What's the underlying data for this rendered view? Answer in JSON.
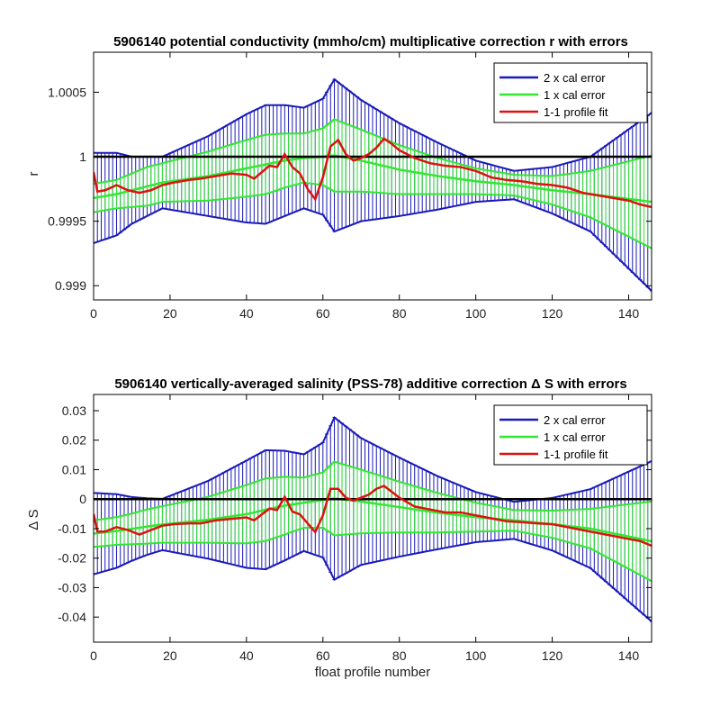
{
  "chart_data": [
    {
      "type": "line",
      "title": "5906140 potential conductivity (mmho/cm) multiplicative correction r with errors",
      "xlabel": "",
      "ylabel": "r",
      "xlim": [
        0,
        146
      ],
      "ylim": [
        0.99889,
        1.00081
      ],
      "xticks": [
        0,
        20,
        40,
        60,
        80,
        100,
        120,
        140
      ],
      "yticks": [
        0.999,
        0.9995,
        1,
        1.0005
      ],
      "ytick_labels": [
        "0.999",
        "0.9995",
        "1",
        "1.0005"
      ],
      "grid": false,
      "legend_position": "top-right",
      "legend": [
        "2 x cal error",
        "1 x cal error",
        "1-1 profile fit"
      ],
      "colors": {
        "two_cal": "#1a1ab8",
        "one_cal": "#33e633",
        "fit": "#dd1111",
        "ref": "#000000"
      },
      "reference_line": 1,
      "fit_center": {
        "x": [
          0,
          6,
          10,
          14,
          18,
          30,
          40,
          45,
          50,
          55,
          60,
          63,
          70,
          80,
          90,
          100,
          110,
          120,
          130,
          146
        ],
        "y": [
          0.99968,
          0.99971,
          0.99974,
          0.99977,
          0.9998,
          0.99985,
          0.99991,
          0.99994,
          0.99997,
          0.99999,
          1.0,
          1.00001,
          0.99997,
          0.9999,
          0.99985,
          0.99981,
          0.99978,
          0.99974,
          0.99971,
          0.99965
        ]
      },
      "one_cal_error": {
        "x": [
          0,
          6,
          10,
          14,
          18,
          30,
          40,
          45,
          50,
          55,
          60,
          63,
          70,
          80,
          90,
          100,
          110,
          120,
          130,
          146
        ],
        "y": [
          0.00011,
          0.00011,
          0.00013,
          0.00015,
          0.00015,
          0.00019,
          0.00022,
          0.00023,
          0.00021,
          0.00019,
          0.00022,
          0.00028,
          0.00024,
          0.00019,
          0.00014,
          0.0001,
          8e-05,
          0.00011,
          0.00018,
          0.00036
        ]
      },
      "two_cal_error": {
        "x": [
          0,
          6,
          10,
          14,
          18,
          30,
          40,
          45,
          50,
          55,
          60,
          63,
          70,
          80,
          90,
          100,
          110,
          120,
          130,
          146
        ],
        "y": [
          0.00035,
          0.00032,
          0.00026,
          0.00023,
          0.0002,
          0.00031,
          0.00042,
          0.00046,
          0.00043,
          0.00039,
          0.00045,
          0.00059,
          0.00047,
          0.00036,
          0.00026,
          0.00016,
          0.00011,
          0.00018,
          0.00029,
          0.00069
        ]
      },
      "profile_fit": {
        "x": [
          0,
          1,
          3,
          6,
          9,
          12,
          15,
          18,
          21,
          25,
          28,
          32,
          36,
          40,
          42,
          44,
          46,
          48,
          50,
          52,
          54,
          56,
          58,
          60,
          62,
          64,
          66,
          68,
          70,
          72,
          74,
          76,
          78,
          80,
          84,
          88,
          92,
          96,
          100,
          104,
          108,
          112,
          116,
          120,
          124,
          128,
          132,
          136,
          140,
          143,
          146
        ],
        "y": [
          0.99988,
          0.99973,
          0.99974,
          0.99978,
          0.99974,
          0.99972,
          0.99974,
          0.99978,
          0.9998,
          0.99982,
          0.99983,
          0.99985,
          0.99987,
          0.99986,
          0.99983,
          0.99988,
          0.99993,
          0.99992,
          1.00002,
          0.99992,
          0.99987,
          0.99975,
          0.99967,
          0.99984,
          1.00008,
          1.00013,
          1.00002,
          0.99997,
          0.99999,
          1.00002,
          1.00007,
          1.00014,
          1.0001,
          1.00005,
          0.99999,
          0.99995,
          0.99993,
          0.99992,
          0.99989,
          0.99984,
          0.99982,
          0.99981,
          0.99979,
          0.99978,
          0.99976,
          0.99972,
          0.9997,
          0.99968,
          0.99966,
          0.99963,
          0.99961
        ]
      }
    },
    {
      "type": "line",
      "title": "5906140 vertically-averaged salinity (PSS-78) additive correction Δ S with errors",
      "xlabel": "float profile number",
      "ylabel": "Δ S",
      "xlim": [
        0,
        146
      ],
      "ylim": [
        -0.0485,
        0.0355
      ],
      "xticks": [
        0,
        20,
        40,
        60,
        80,
        100,
        120,
        140
      ],
      "yticks": [
        -0.04,
        -0.03,
        -0.02,
        -0.01,
        0,
        0.01,
        0.02,
        0.03
      ],
      "ytick_labels": [
        "-0.04",
        "-0.03",
        "-0.02",
        "-0.01",
        "0",
        "0.01",
        "0.02",
        "0.03"
      ],
      "grid": false,
      "legend_position": "top-right",
      "legend": [
        "2 x cal error",
        "1 x cal error",
        "1-1 profile fit"
      ],
      "colors": {
        "two_cal": "#1a1ab8",
        "one_cal": "#33e633",
        "fit": "#dd1111",
        "ref": "#000000"
      },
      "reference_line": 0,
      "fit_center": {
        "x": [
          0,
          6,
          10,
          14,
          18,
          30,
          40,
          45,
          50,
          55,
          60,
          63,
          70,
          80,
          90,
          100,
          110,
          120,
          130,
          146
        ],
        "y": [
          -0.0117,
          -0.0108,
          -0.0101,
          -0.0093,
          -0.0086,
          -0.007,
          -0.0051,
          -0.0036,
          -0.0022,
          -0.0012,
          -0.0003,
          0.0002,
          -0.0008,
          -0.0027,
          -0.0046,
          -0.0061,
          -0.0072,
          -0.0085,
          -0.01,
          -0.0143
        ]
      },
      "one_cal_error": {
        "x": [
          0,
          6,
          10,
          14,
          18,
          30,
          40,
          45,
          50,
          55,
          60,
          63,
          70,
          80,
          90,
          100,
          110,
          120,
          130,
          146
        ],
        "y": [
          0.0045,
          0.0047,
          0.0052,
          0.0058,
          0.0062,
          0.0078,
          0.0099,
          0.0106,
          0.0098,
          0.0085,
          0.0094,
          0.0125,
          0.0108,
          0.0086,
          0.0067,
          0.0049,
          0.0035,
          0.0046,
          0.0067,
          0.0135
        ]
      },
      "two_cal_error": {
        "x": [
          0,
          6,
          10,
          14,
          18,
          30,
          40,
          45,
          50,
          55,
          60,
          63,
          70,
          80,
          90,
          100,
          110,
          120,
          130,
          146
        ],
        "y": [
          0.0138,
          0.0125,
          0.0108,
          0.0096,
          0.0087,
          0.0132,
          0.0182,
          0.0202,
          0.0186,
          0.0164,
          0.0195,
          0.0275,
          0.0215,
          0.0168,
          0.0124,
          0.0085,
          0.0063,
          0.0089,
          0.0134,
          0.0272
        ]
      },
      "profile_fit": {
        "x": [
          0,
          1,
          3,
          6,
          9,
          12,
          15,
          18,
          21,
          25,
          28,
          32,
          36,
          40,
          42,
          44,
          46,
          48,
          50,
          52,
          54,
          56,
          58,
          60,
          62,
          64,
          66,
          68,
          70,
          72,
          74,
          76,
          78,
          80,
          84,
          88,
          92,
          96,
          100,
          104,
          108,
          112,
          116,
          120,
          124,
          128,
          132,
          136,
          140,
          143,
          146
        ],
        "y": [
          -0.005,
          -0.011,
          -0.011,
          -0.0095,
          -0.0105,
          -0.012,
          -0.0105,
          -0.009,
          -0.0085,
          -0.0082,
          -0.0082,
          -0.0072,
          -0.0067,
          -0.0062,
          -0.0072,
          -0.0052,
          -0.0032,
          -0.0037,
          0.0008,
          -0.0042,
          -0.0052,
          -0.0082,
          -0.0112,
          -0.0055,
          0.0035,
          0.0035,
          0.0005,
          -0.0005,
          0.0005,
          0.0015,
          0.0035,
          0.0045,
          0.0025,
          0.0005,
          -0.0025,
          -0.0035,
          -0.0045,
          -0.0045,
          -0.0055,
          -0.0065,
          -0.0075,
          -0.0078,
          -0.0082,
          -0.0085,
          -0.0095,
          -0.0105,
          -0.0115,
          -0.0125,
          -0.0135,
          -0.0142,
          -0.0158
        ]
      }
    }
  ]
}
